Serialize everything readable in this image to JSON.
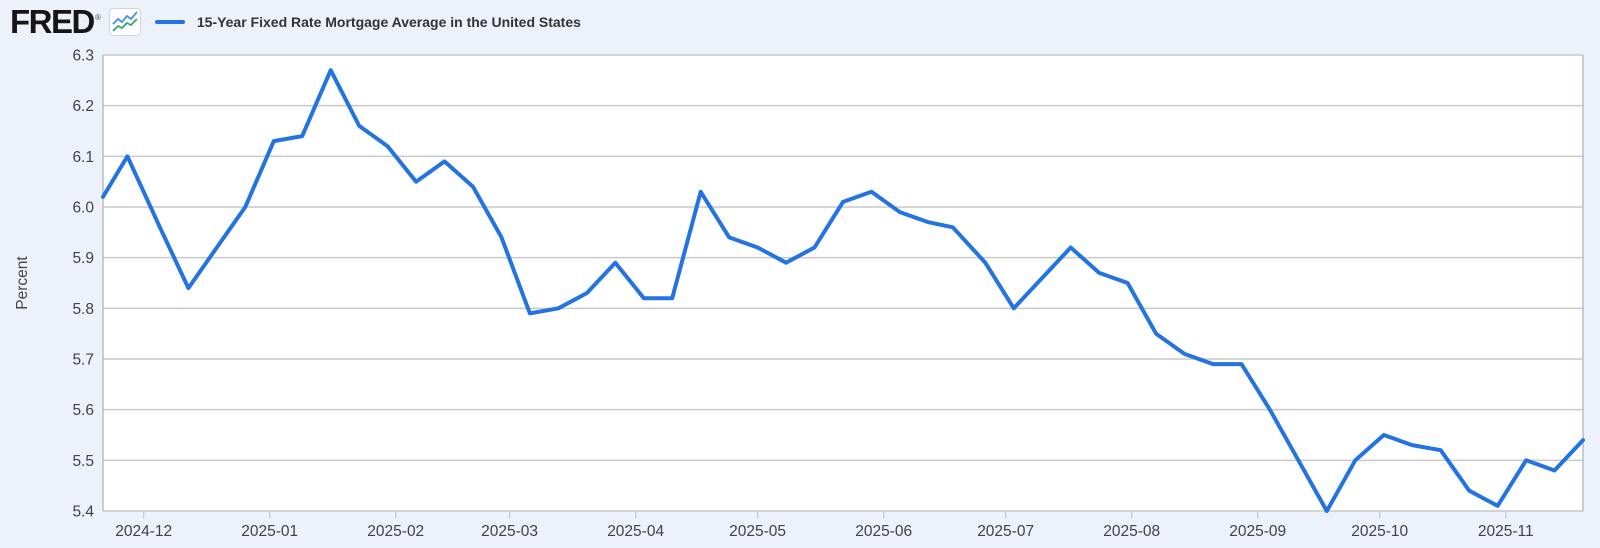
{
  "header": {
    "logo": "FRED",
    "registered_mark": "®",
    "legend_label": "15-Year Fixed Rate Mortgage Average in the United States"
  },
  "chart_data": {
    "type": "line",
    "title": "15-Year Fixed Rate Mortgage Average in the United States",
    "ylabel": "Percent",
    "ylim": [
      5.4,
      6.3
    ],
    "y_ticks": [
      "6.3",
      "6.2",
      "6.1",
      "6.0",
      "5.9",
      "5.8",
      "5.7",
      "5.6",
      "5.5",
      "5.4"
    ],
    "x_tick_labels": [
      "2024-12",
      "2025-01",
      "2025-02",
      "2025-03",
      "2025-04",
      "2025-05",
      "2025-06",
      "2025-07",
      "2025-08",
      "2025-09",
      "2025-10",
      "2025-11"
    ],
    "x_range": [
      "2024-11-21",
      "2025-11-20"
    ],
    "grid": "horizontal",
    "legend_position": "top-left",
    "series": [
      {
        "name": "15-Year Fixed Rate Mortgage Average in the United States",
        "units": "Percent",
        "frequency": "weekly",
        "color": "#2374e1",
        "points": [
          [
            "2024-11-21",
            6.02
          ],
          [
            "2024-11-27",
            6.1
          ],
          [
            "2024-12-05",
            5.96
          ],
          [
            "2024-12-12",
            5.84
          ],
          [
            "2024-12-19",
            5.92
          ],
          [
            "2024-12-26",
            6.0
          ],
          [
            "2025-01-02",
            6.13
          ],
          [
            "2025-01-09",
            6.14
          ],
          [
            "2025-01-16",
            6.27
          ],
          [
            "2025-01-23",
            6.16
          ],
          [
            "2025-01-30",
            6.12
          ],
          [
            "2025-02-06",
            6.05
          ],
          [
            "2025-02-13",
            6.09
          ],
          [
            "2025-02-20",
            6.04
          ],
          [
            "2025-02-27",
            5.94
          ],
          [
            "2025-03-06",
            5.79
          ],
          [
            "2025-03-13",
            5.8
          ],
          [
            "2025-03-20",
            5.83
          ],
          [
            "2025-03-27",
            5.89
          ],
          [
            "2025-04-03",
            5.82
          ],
          [
            "2025-04-10",
            5.82
          ],
          [
            "2025-04-17",
            6.03
          ],
          [
            "2025-04-24",
            5.94
          ],
          [
            "2025-05-01",
            5.92
          ],
          [
            "2025-05-08",
            5.89
          ],
          [
            "2025-05-15",
            5.92
          ],
          [
            "2025-05-22",
            6.01
          ],
          [
            "2025-05-29",
            6.03
          ],
          [
            "2025-06-05",
            5.99
          ],
          [
            "2025-06-12",
            5.97
          ],
          [
            "2025-06-18",
            5.96
          ],
          [
            "2025-06-26",
            5.89
          ],
          [
            "2025-07-03",
            5.8
          ],
          [
            "2025-07-10",
            5.86
          ],
          [
            "2025-07-17",
            5.92
          ],
          [
            "2025-07-24",
            5.87
          ],
          [
            "2025-07-31",
            5.85
          ],
          [
            "2025-08-07",
            5.75
          ],
          [
            "2025-08-14",
            5.71
          ],
          [
            "2025-08-21",
            5.69
          ],
          [
            "2025-08-28",
            5.69
          ],
          [
            "2025-09-04",
            5.6
          ],
          [
            "2025-09-11",
            5.5
          ],
          [
            "2025-09-18",
            5.4
          ],
          [
            "2025-09-25",
            5.5
          ],
          [
            "2025-10-02",
            5.55
          ],
          [
            "2025-10-09",
            5.53
          ],
          [
            "2025-10-16",
            5.52
          ],
          [
            "2025-10-23",
            5.44
          ],
          [
            "2025-10-30",
            5.41
          ],
          [
            "2025-11-06",
            5.5
          ],
          [
            "2025-11-13",
            5.48
          ],
          [
            "2025-11-20",
            5.54
          ]
        ]
      }
    ]
  },
  "colors": {
    "page_bg": "#ecf1fa",
    "plot_bg": "#ffffff",
    "gridline": "#c9c9c9",
    "axis_border": "#b8bdc7",
    "tick_mark": "#c3cddd",
    "tick_label": "#424242",
    "axis_title": "#444444",
    "title_text": "#333333",
    "logo_text": "#161616",
    "icon_blue": "#4a90e2",
    "icon_green": "#34a671",
    "series_line": "#2374e1"
  }
}
